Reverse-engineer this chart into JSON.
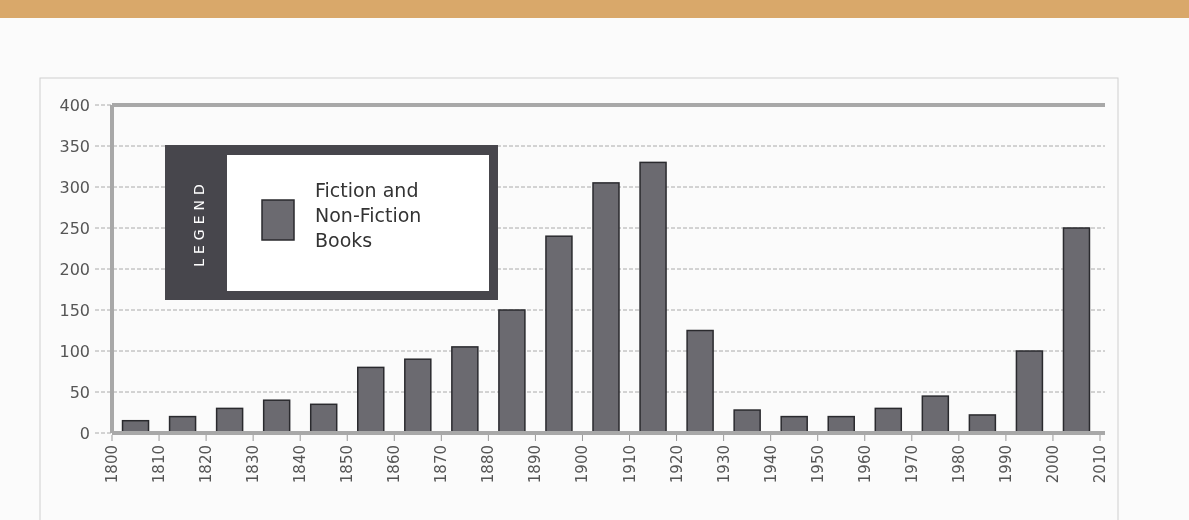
{
  "chart_data": {
    "type": "bar",
    "legend_title": "LEGEND",
    "x": [
      1805,
      1815,
      1825,
      1835,
      1845,
      1855,
      1865,
      1875,
      1885,
      1895,
      1905,
      1915,
      1925,
      1935,
      1945,
      1955,
      1965,
      1975,
      1985,
      1995,
      2005
    ],
    "series": [
      {
        "name": "Fiction and Non-Fiction Books",
        "color": "#6b6a70",
        "values": [
          15,
          20,
          30,
          40,
          35,
          80,
          90,
          105,
          150,
          240,
          305,
          330,
          125,
          28,
          20,
          20,
          30,
          45,
          22,
          100,
          250
        ]
      }
    ],
    "xlim": [
      1800,
      2010
    ],
    "xticks": [
      1800,
      1810,
      1820,
      1830,
      1840,
      1850,
      1860,
      1870,
      1880,
      1890,
      1900,
      1910,
      1920,
      1930,
      1940,
      1950,
      1960,
      1970,
      1980,
      1990,
      2000,
      2010
    ],
    "ylim": [
      0,
      400
    ],
    "yticks": [
      0,
      50,
      100,
      150,
      200,
      250,
      300,
      350,
      400
    ],
    "grid": "y",
    "legend": "top left"
  }
}
